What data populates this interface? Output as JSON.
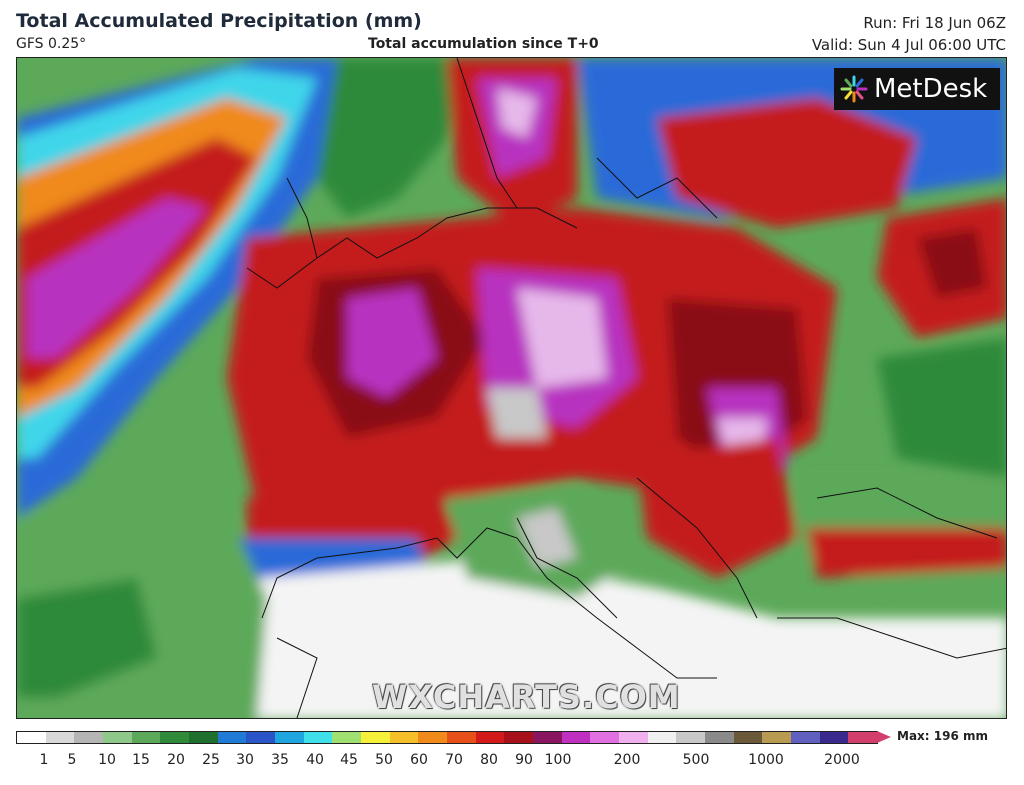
{
  "header": {
    "title": "Total Accumulated Precipitation (mm)",
    "model": "GFS 0.25°",
    "subtitle": "Total accumulation since T+0",
    "run": "Run: Fri 18 Jun 06Z",
    "valid": "Valid: Sun 4 Jul 06:00 UTC"
  },
  "logo": {
    "text": "MetDesk",
    "icon": "sunburst-logo-icon"
  },
  "watermark": "WXCHARTS.COM",
  "legend": {
    "max_label": "Max: 196 mm",
    "ticks": [
      "1",
      "5",
      "10",
      "15",
      "20",
      "25",
      "30",
      "35",
      "40",
      "45",
      "50",
      "60",
      "70",
      "80",
      "90",
      "100",
      "200",
      "500",
      "1000",
      "2000"
    ],
    "colors": [
      "#ffffff",
      "#d9d9d9",
      "#b5b5b5",
      "#8fc98a",
      "#5da95a",
      "#2f8a3a",
      "#1f6f2f",
      "#1f7bd6",
      "#2a55c8",
      "#1fa6e0",
      "#3fe0ea",
      "#9fe070",
      "#f5f03a",
      "#f5c02a",
      "#f08a1a",
      "#e8501a",
      "#d21a1a",
      "#a8101a",
      "#8a1560",
      "#c030c0",
      "#e070e0",
      "#f0b0f0",
      "#f0f0f0",
      "#c8c8c8",
      "#8a8a8a",
      "#6a5a3a",
      "#b89a50",
      "#6060c0",
      "#3a2a90",
      "#d23f6c"
    ]
  },
  "map_colors": {
    "ocean_green": "#5da95a",
    "dry_white": "#f4f4f4",
    "light_gray": "#c8c8c8",
    "heavy_red": "#c41a1a",
    "dark_red": "#8a0f12",
    "magenta": "#b830c0",
    "light_pink": "#e6b8ea",
    "orange": "#f08a1a",
    "yellow": "#f5e03a",
    "blue": "#2a6ad8",
    "cyan": "#3fd6ea"
  }
}
